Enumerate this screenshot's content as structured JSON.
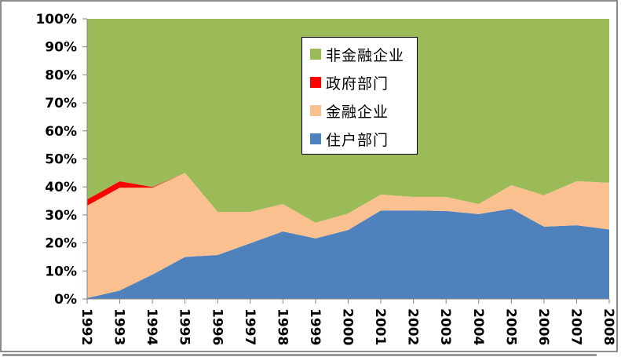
{
  "chart_data": {
    "type": "area",
    "stacked": true,
    "percent": true,
    "title": "",
    "xlabel": "",
    "ylabel": "",
    "ylim": [
      0,
      100
    ],
    "y_ticks": [
      "0%",
      "10%",
      "20%",
      "30%",
      "40%",
      "50%",
      "60%",
      "70%",
      "80%",
      "90%",
      "100%"
    ],
    "categories": [
      "1992",
      "1993",
      "1994",
      "1995",
      "1996",
      "1997",
      "1998",
      "1999",
      "2000",
      "2001",
      "2002",
      "2003",
      "2004",
      "2005",
      "2006",
      "2007",
      "2008"
    ],
    "series": [
      {
        "name": "住户部门",
        "color": "#4f81bd",
        "values": [
          0.3,
          3.0,
          8.7,
          15.0,
          15.7,
          19.9,
          24.1,
          21.6,
          24.6,
          31.6,
          31.6,
          31.4,
          30.3,
          32.2,
          25.8,
          26.3,
          24.8
        ]
      },
      {
        "name": "金融企业",
        "color": "#fac090",
        "values": [
          33.0,
          36.7,
          31.0,
          30.0,
          15.4,
          11.2,
          9.8,
          5.6,
          5.9,
          5.7,
          4.8,
          5.0,
          3.6,
          8.4,
          11.2,
          15.7,
          16.7
        ]
      },
      {
        "name": "政府部门",
        "color": "#ff0000",
        "values": [
          2.2,
          2.3,
          0.3,
          0.0,
          0.0,
          0.0,
          0.0,
          0.0,
          0.0,
          0.0,
          0.0,
          0.0,
          0.0,
          0.0,
          0.0,
          0.0,
          0.0
        ]
      },
      {
        "name": "非金融企业",
        "color": "#9bbb59",
        "values": [
          64.5,
          58.0,
          60.0,
          55.0,
          68.9,
          68.9,
          66.1,
          72.8,
          69.5,
          62.7,
          63.6,
          63.6,
          66.1,
          59.4,
          63.0,
          58.0,
          58.5
        ]
      }
    ],
    "legend": {
      "position": "inside-top-center",
      "entries": [
        "非金融企业",
        "政府部门",
        "金融企业",
        "住户部门"
      ]
    },
    "grid": false
  },
  "legend": {
    "items": [
      {
        "label": "非金融企业",
        "color": "#9bbb59"
      },
      {
        "label": "政府部门",
        "color": "#ff0000"
      },
      {
        "label": "金融企业",
        "color": "#fac090"
      },
      {
        "label": "住户部门",
        "color": "#4f81bd"
      }
    ]
  }
}
